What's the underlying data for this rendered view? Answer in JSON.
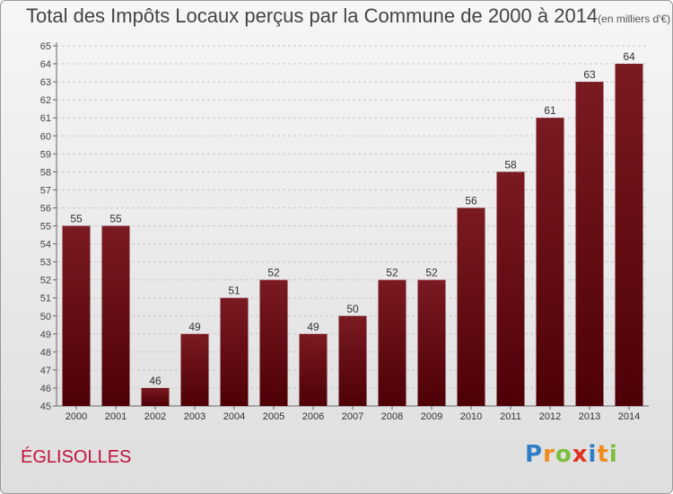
{
  "header": {
    "title": "Total des Impôts Locaux perçus par la Commune de 2000 à 2014",
    "unit": "(en milliers d'€)"
  },
  "footer": {
    "commune": "ÉGLISOLLES",
    "commune_color": "#c0103a",
    "logo_letters": [
      {
        "char": "P",
        "color": "#2f7fc8"
      },
      {
        "char": "r",
        "color": "#f08a1c"
      },
      {
        "char": "o",
        "color": "#7bbf3a"
      },
      {
        "char": "x",
        "color": "#e2321f"
      },
      {
        "char": "i",
        "color": "#2f7fc8"
      },
      {
        "char": "t",
        "color": "#f08a1c"
      },
      {
        "char": "i",
        "color": "#7bbf3a"
      }
    ]
  },
  "chart_data": {
    "type": "bar",
    "categories": [
      "2000",
      "2001",
      "2002",
      "2003",
      "2004",
      "2005",
      "2006",
      "2007",
      "2008",
      "2009",
      "2010",
      "2011",
      "2012",
      "2013",
      "2014"
    ],
    "values": [
      55,
      55,
      46,
      49,
      51,
      52,
      49,
      50,
      52,
      52,
      56,
      58,
      61,
      63,
      64
    ],
    "ylim": [
      45,
      65
    ],
    "yticks": [
      45,
      46,
      47,
      48,
      49,
      50,
      51,
      52,
      53,
      54,
      55,
      56,
      57,
      58,
      59,
      60,
      61,
      62,
      63,
      64,
      65
    ],
    "grid": true,
    "bar_color": "#7a1a22",
    "bar_color_dark": "#4e0006"
  }
}
